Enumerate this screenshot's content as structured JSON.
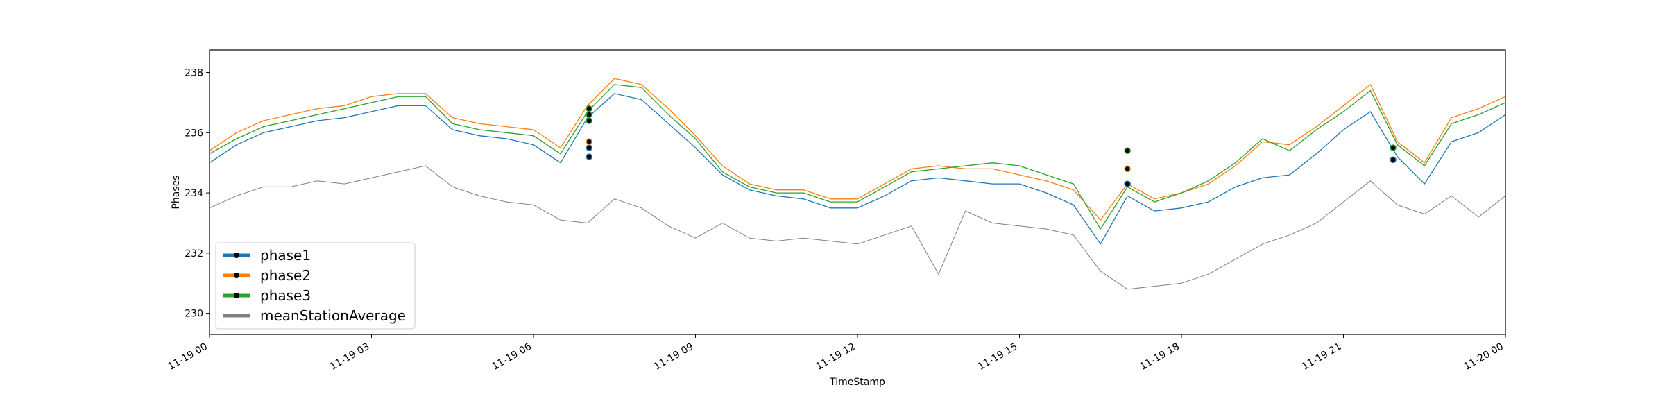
{
  "chart_data": {
    "type": "line",
    "title": "",
    "xlabel": "TimeStamp",
    "ylabel": "Phases",
    "xlim": [
      "2019-11-19 00:00",
      "2019-11-20 00:00"
    ],
    "ylim": [
      229.3,
      238.75
    ],
    "x_ticks": [
      {
        "label": "11-19 00",
        "hour": 0
      },
      {
        "label": "11-19 03",
        "hour": 3
      },
      {
        "label": "11-19 06",
        "hour": 6
      },
      {
        "label": "11-19 09",
        "hour": 9
      },
      {
        "label": "11-19 12",
        "hour": 12
      },
      {
        "label": "11-19 15",
        "hour": 15
      },
      {
        "label": "11-19 18",
        "hour": 18
      },
      {
        "label": "11-19 21",
        "hour": 21
      },
      {
        "label": "11-20 00",
        "hour": 24
      }
    ],
    "y_ticks": [
      230,
      232,
      234,
      236,
      238
    ],
    "legend_position": "lower-left",
    "grid": false,
    "x_hours": [
      0,
      0.5,
      1,
      1.5,
      2,
      2.5,
      3,
      3.5,
      4,
      4.5,
      5,
      5.5,
      6,
      6.5,
      7,
      7.5,
      8,
      8.5,
      9,
      9.5,
      10,
      10.5,
      11,
      11.5,
      12,
      12.5,
      13,
      13.5,
      14,
      14.5,
      15,
      15.5,
      16,
      16.5,
      17,
      17.5,
      18,
      18.5,
      19,
      19.5,
      20,
      20.5,
      21,
      21.5,
      22,
      22.5,
      23,
      23.5,
      24
    ],
    "series": [
      {
        "name": "phase1",
        "color": "#1f77b4",
        "values": [
          235.0,
          235.6,
          236.0,
          236.2,
          236.4,
          236.5,
          236.7,
          236.9,
          236.9,
          236.1,
          235.9,
          235.8,
          235.6,
          235.0,
          236.5,
          237.3,
          237.1,
          236.3,
          235.5,
          234.6,
          234.1,
          233.9,
          233.8,
          233.5,
          233.5,
          233.9,
          234.4,
          234.5,
          234.4,
          234.3,
          234.3,
          234.0,
          233.6,
          232.3,
          233.9,
          233.4,
          233.5,
          233.7,
          234.2,
          234.5,
          234.6,
          235.3,
          236.1,
          236.7,
          235.2,
          234.3,
          235.7,
          236.0,
          236.6
        ]
      },
      {
        "name": "phase2",
        "color": "#ff7f0e",
        "values": [
          235.4,
          236.0,
          236.4,
          236.6,
          236.8,
          236.9,
          237.2,
          237.3,
          237.3,
          236.5,
          236.3,
          236.2,
          236.1,
          235.5,
          236.9,
          237.8,
          237.6,
          236.8,
          235.9,
          234.9,
          234.3,
          234.1,
          234.1,
          233.8,
          233.8,
          234.3,
          234.8,
          234.9,
          234.8,
          234.8,
          234.6,
          234.4,
          234.1,
          233.1,
          234.3,
          233.8,
          234.0,
          234.3,
          234.9,
          235.7,
          235.6,
          236.2,
          236.9,
          237.6,
          235.7,
          235.0,
          236.5,
          236.8,
          237.2
        ]
      },
      {
        "name": "phase3",
        "color": "#2ca02c",
        "values": [
          235.3,
          235.8,
          236.2,
          236.4,
          236.6,
          236.8,
          237.0,
          237.2,
          237.2,
          236.3,
          236.1,
          236.0,
          235.9,
          235.3,
          236.7,
          237.6,
          237.5,
          236.6,
          235.8,
          234.7,
          234.2,
          234.0,
          234.0,
          233.7,
          233.7,
          234.2,
          234.7,
          234.8,
          234.9,
          235.0,
          234.9,
          234.6,
          234.3,
          232.8,
          234.2,
          233.7,
          234.0,
          234.4,
          235.0,
          235.8,
          235.4,
          236.1,
          236.7,
          237.4,
          235.6,
          234.9,
          236.3,
          236.6,
          237.0
        ]
      },
      {
        "name": "meanStationAverage",
        "color": "#808080",
        "values": [
          233.5,
          233.9,
          234.2,
          234.2,
          234.4,
          234.3,
          234.5,
          234.7,
          234.9,
          234.2,
          233.9,
          233.7,
          233.6,
          233.1,
          233.0,
          233.8,
          233.5,
          232.9,
          232.5,
          233.0,
          232.5,
          232.4,
          232.5,
          232.4,
          232.3,
          232.6,
          232.9,
          231.3,
          233.4,
          233.0,
          232.9,
          232.8,
          232.6,
          231.4,
          230.8,
          230.9,
          231.0,
          231.3,
          231.8,
          232.3,
          232.6,
          233.0,
          233.7,
          234.4,
          233.6,
          233.3,
          233.9,
          233.2,
          233.9
        ]
      }
    ],
    "markers": [
      {
        "series": "phase1",
        "points": [
          [
            7.03,
            235.2
          ],
          [
            7.03,
            235.5
          ],
          [
            7.03,
            235.7
          ],
          [
            17.0,
            234.3
          ],
          [
            21.92,
            235.1
          ]
        ]
      },
      {
        "series": "phase2",
        "points": [
          [
            7.03,
            235.7
          ],
          [
            17.0,
            234.8
          ]
        ]
      },
      {
        "series": "phase3",
        "points": [
          [
            7.03,
            236.4
          ],
          [
            7.03,
            236.6
          ],
          [
            7.03,
            236.8
          ],
          [
            17.0,
            235.4
          ],
          [
            21.92,
            235.5
          ]
        ]
      }
    ]
  }
}
